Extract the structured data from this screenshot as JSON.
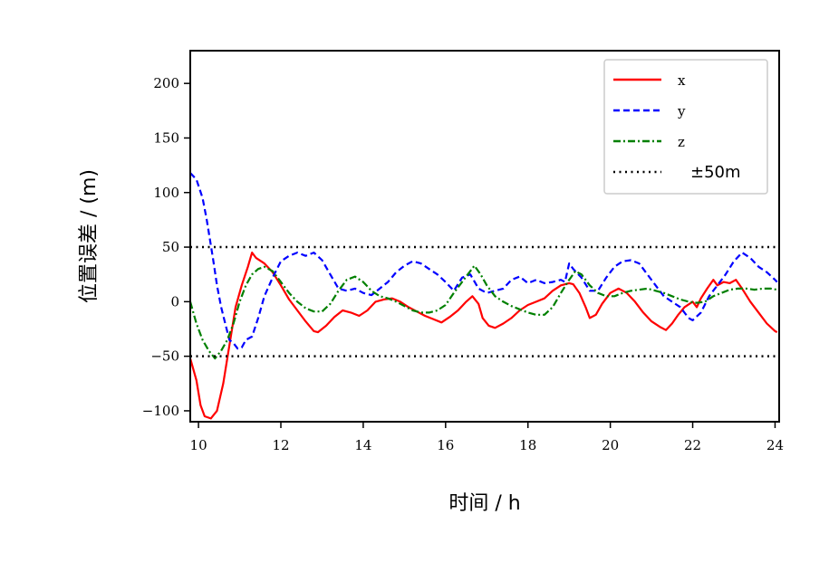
{
  "chart_data": {
    "type": "line",
    "title": "",
    "xlabel": "时间 / h",
    "ylabel": "位置误差 / (m)",
    "xlim": [
      9.8,
      24.1
    ],
    "ylim": [
      -110,
      230
    ],
    "xticks": [
      10,
      12,
      14,
      16,
      18,
      20,
      22,
      24
    ],
    "yticks": [
      -100,
      -50,
      0,
      50,
      100,
      150,
      200
    ],
    "legend_position": "top-right",
    "grid": false,
    "series": [
      {
        "name": "x",
        "color": "#ff0000",
        "linestyle": "solid",
        "points": [
          [
            9.8,
            -52
          ],
          [
            9.95,
            -72
          ],
          [
            10.05,
            -95
          ],
          [
            10.15,
            -105
          ],
          [
            10.3,
            -107
          ],
          [
            10.45,
            -100
          ],
          [
            10.6,
            -75
          ],
          [
            10.75,
            -40
          ],
          [
            10.9,
            -5
          ],
          [
            11.05,
            15
          ],
          [
            11.2,
            32
          ],
          [
            11.3,
            45
          ],
          [
            11.4,
            40
          ],
          [
            11.6,
            35
          ],
          [
            11.8,
            27
          ],
          [
            12.0,
            15
          ],
          [
            12.2,
            2
          ],
          [
            12.4,
            -8
          ],
          [
            12.6,
            -18
          ],
          [
            12.8,
            -27
          ],
          [
            12.9,
            -28
          ],
          [
            13.1,
            -22
          ],
          [
            13.3,
            -14
          ],
          [
            13.5,
            -8
          ],
          [
            13.7,
            -10
          ],
          [
            13.9,
            -13
          ],
          [
            14.1,
            -8
          ],
          [
            14.3,
            0
          ],
          [
            14.5,
            2
          ],
          [
            14.7,
            3
          ],
          [
            14.9,
            0
          ],
          [
            15.1,
            -5
          ],
          [
            15.3,
            -9
          ],
          [
            15.5,
            -13
          ],
          [
            15.7,
            -16
          ],
          [
            15.9,
            -19
          ],
          [
            16.1,
            -14
          ],
          [
            16.3,
            -8
          ],
          [
            16.5,
            0
          ],
          [
            16.65,
            5
          ],
          [
            16.8,
            -2
          ],
          [
            16.9,
            -15
          ],
          [
            17.05,
            -22
          ],
          [
            17.2,
            -24
          ],
          [
            17.4,
            -20
          ],
          [
            17.6,
            -15
          ],
          [
            17.8,
            -8
          ],
          [
            18.0,
            -3
          ],
          [
            18.2,
            0
          ],
          [
            18.4,
            3
          ],
          [
            18.6,
            10
          ],
          [
            18.8,
            15
          ],
          [
            19.0,
            17
          ],
          [
            19.1,
            16
          ],
          [
            19.25,
            8
          ],
          [
            19.4,
            -5
          ],
          [
            19.5,
            -15
          ],
          [
            19.65,
            -12
          ],
          [
            19.8,
            -2
          ],
          [
            20.0,
            8
          ],
          [
            20.2,
            12
          ],
          [
            20.4,
            8
          ],
          [
            20.6,
            0
          ],
          [
            20.8,
            -10
          ],
          [
            21.0,
            -18
          ],
          [
            21.2,
            -23
          ],
          [
            21.35,
            -26
          ],
          [
            21.5,
            -20
          ],
          [
            21.65,
            -12
          ],
          [
            21.8,
            -5
          ],
          [
            22.0,
            0
          ],
          [
            22.1,
            -5
          ],
          [
            22.2,
            3
          ],
          [
            22.35,
            12
          ],
          [
            22.5,
            20
          ],
          [
            22.6,
            15
          ],
          [
            22.75,
            18
          ],
          [
            22.9,
            17
          ],
          [
            23.05,
            20
          ],
          [
            23.2,
            12
          ],
          [
            23.4,
            0
          ],
          [
            23.6,
            -10
          ],
          [
            23.8,
            -20
          ],
          [
            24.0,
            -27
          ],
          [
            24.05,
            -28
          ]
        ]
      },
      {
        "name": "y",
        "color": "#0000ff",
        "linestyle": "dashed",
        "points": [
          [
            9.8,
            118
          ],
          [
            9.95,
            112
          ],
          [
            10.1,
            95
          ],
          [
            10.2,
            75
          ],
          [
            10.35,
            40
          ],
          [
            10.45,
            15
          ],
          [
            10.55,
            -5
          ],
          [
            10.65,
            -20
          ],
          [
            10.75,
            -35
          ],
          [
            10.85,
            -38
          ],
          [
            10.95,
            -43
          ],
          [
            11.05,
            -42
          ],
          [
            11.15,
            -35
          ],
          [
            11.3,
            -32
          ],
          [
            11.45,
            -15
          ],
          [
            11.6,
            5
          ],
          [
            11.8,
            22
          ],
          [
            12.0,
            37
          ],
          [
            12.2,
            42
          ],
          [
            12.4,
            45
          ],
          [
            12.6,
            42
          ],
          [
            12.8,
            45
          ],
          [
            13.0,
            38
          ],
          [
            13.2,
            25
          ],
          [
            13.4,
            12
          ],
          [
            13.6,
            10
          ],
          [
            13.8,
            12
          ],
          [
            14.0,
            8
          ],
          [
            14.2,
            6
          ],
          [
            14.4,
            12
          ],
          [
            14.6,
            18
          ],
          [
            14.8,
            27
          ],
          [
            15.0,
            33
          ],
          [
            15.2,
            37
          ],
          [
            15.4,
            35
          ],
          [
            15.6,
            30
          ],
          [
            15.8,
            25
          ],
          [
            16.0,
            18
          ],
          [
            16.2,
            10
          ],
          [
            16.4,
            22
          ],
          [
            16.6,
            25
          ],
          [
            16.8,
            12
          ],
          [
            17.0,
            8
          ],
          [
            17.2,
            10
          ],
          [
            17.4,
            12
          ],
          [
            17.6,
            20
          ],
          [
            17.8,
            23
          ],
          [
            18.0,
            17
          ],
          [
            18.2,
            20
          ],
          [
            18.4,
            17
          ],
          [
            18.6,
            18
          ],
          [
            18.8,
            20
          ],
          [
            18.9,
            18
          ],
          [
            19.0,
            35
          ],
          [
            19.1,
            30
          ],
          [
            19.3,
            22
          ],
          [
            19.5,
            10
          ],
          [
            19.7,
            10
          ],
          [
            19.9,
            22
          ],
          [
            20.1,
            32
          ],
          [
            20.3,
            37
          ],
          [
            20.5,
            38
          ],
          [
            20.7,
            35
          ],
          [
            20.9,
            25
          ],
          [
            21.1,
            15
          ],
          [
            21.3,
            5
          ],
          [
            21.5,
            0
          ],
          [
            21.7,
            -5
          ],
          [
            21.9,
            -15
          ],
          [
            22.0,
            -17
          ],
          [
            22.2,
            -10
          ],
          [
            22.4,
            5
          ],
          [
            22.6,
            15
          ],
          [
            22.8,
            25
          ],
          [
            23.0,
            37
          ],
          [
            23.2,
            45
          ],
          [
            23.4,
            40
          ],
          [
            23.6,
            32
          ],
          [
            23.8,
            27
          ],
          [
            24.0,
            20
          ],
          [
            24.05,
            18
          ]
        ]
      },
      {
        "name": "z",
        "color": "#008000",
        "linestyle": "dashdot",
        "points": [
          [
            9.8,
            0
          ],
          [
            9.95,
            -20
          ],
          [
            10.1,
            -35
          ],
          [
            10.25,
            -45
          ],
          [
            10.4,
            -52
          ],
          [
            10.55,
            -45
          ],
          [
            10.7,
            -35
          ],
          [
            10.85,
            -20
          ],
          [
            11.0,
            0
          ],
          [
            11.15,
            15
          ],
          [
            11.3,
            25
          ],
          [
            11.45,
            30
          ],
          [
            11.6,
            32
          ],
          [
            11.8,
            28
          ],
          [
            12.0,
            18
          ],
          [
            12.2,
            8
          ],
          [
            12.4,
            0
          ],
          [
            12.6,
            -6
          ],
          [
            12.8,
            -9
          ],
          [
            13.0,
            -9
          ],
          [
            13.2,
            -2
          ],
          [
            13.4,
            10
          ],
          [
            13.6,
            20
          ],
          [
            13.8,
            23
          ],
          [
            14.0,
            18
          ],
          [
            14.2,
            10
          ],
          [
            14.4,
            5
          ],
          [
            14.6,
            3
          ],
          [
            14.8,
            0
          ],
          [
            15.0,
            -4
          ],
          [
            15.2,
            -8
          ],
          [
            15.4,
            -10
          ],
          [
            15.6,
            -10
          ],
          [
            15.8,
            -8
          ],
          [
            16.0,
            -3
          ],
          [
            16.2,
            8
          ],
          [
            16.4,
            18
          ],
          [
            16.6,
            28
          ],
          [
            16.7,
            33
          ],
          [
            16.85,
            25
          ],
          [
            17.0,
            15
          ],
          [
            17.2,
            5
          ],
          [
            17.4,
            0
          ],
          [
            17.6,
            -4
          ],
          [
            17.8,
            -7
          ],
          [
            18.0,
            -10
          ],
          [
            18.2,
            -12
          ],
          [
            18.4,
            -12
          ],
          [
            18.6,
            -5
          ],
          [
            18.8,
            8
          ],
          [
            19.0,
            20
          ],
          [
            19.15,
            28
          ],
          [
            19.3,
            25
          ],
          [
            19.5,
            15
          ],
          [
            19.7,
            8
          ],
          [
            19.9,
            5
          ],
          [
            20.1,
            5
          ],
          [
            20.3,
            8
          ],
          [
            20.5,
            10
          ],
          [
            20.7,
            11
          ],
          [
            20.9,
            12
          ],
          [
            21.1,
            10
          ],
          [
            21.3,
            8
          ],
          [
            21.5,
            5
          ],
          [
            21.7,
            2
          ],
          [
            21.9,
            0
          ],
          [
            22.1,
            -1
          ],
          [
            22.3,
            0
          ],
          [
            22.5,
            5
          ],
          [
            22.7,
            8
          ],
          [
            22.9,
            11
          ],
          [
            23.1,
            12
          ],
          [
            23.3,
            12
          ],
          [
            23.5,
            11
          ],
          [
            23.7,
            12
          ],
          [
            23.9,
            12
          ],
          [
            24.05,
            11
          ]
        ]
      },
      {
        "name": "±50m",
        "color": "#000000",
        "linestyle": "dotted",
        "reference_lines": [
          50,
          -50
        ]
      }
    ]
  }
}
